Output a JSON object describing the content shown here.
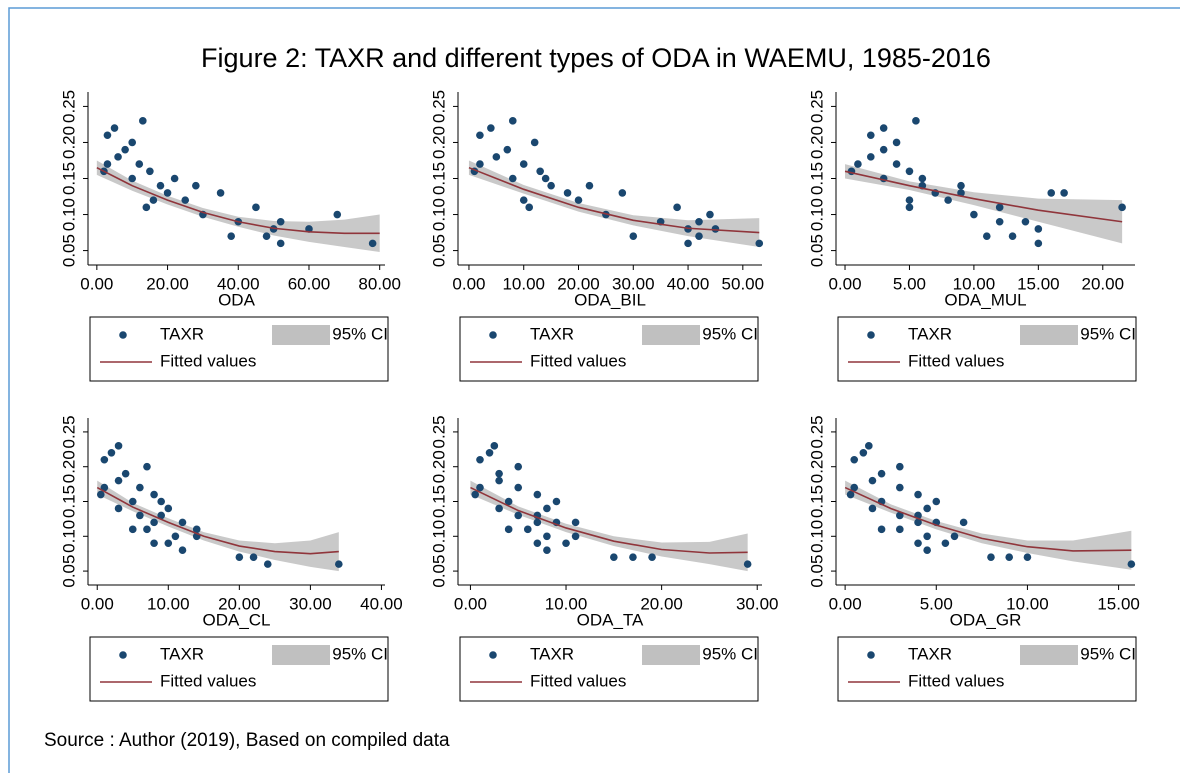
{
  "title": "Figure 2: TAXR and different types of ODA in WAEMU, 1985-2016",
  "source": "Source : Author (2019), Based on compiled data",
  "chart_data": [
    {
      "type": "scatter",
      "x_label": "ODA",
      "xlim": [
        -2.5,
        81.5
      ],
      "ylim": [
        0.03,
        0.27
      ],
      "xticks": [
        {
          "value": 0,
          "label": "0.00"
        },
        {
          "value": 20,
          "label": "20.00"
        },
        {
          "value": 40,
          "label": "40.00"
        },
        {
          "value": 60,
          "label": "60.00"
        },
        {
          "value": 80,
          "label": "80.00"
        }
      ],
      "yticks": [
        {
          "value": 0.05,
          "label": "0.05"
        },
        {
          "value": 0.1,
          "label": "0.10"
        },
        {
          "value": 0.15,
          "label": "0.15"
        },
        {
          "value": 0.2,
          "label": "0.20"
        },
        {
          "value": 0.25,
          "label": "0.25"
        }
      ],
      "series": [
        {
          "name": "TAXR",
          "color": "#1a476f",
          "x": [
            5,
            3,
            10,
            8,
            6,
            12,
            15,
            10,
            18,
            20,
            25,
            14,
            30,
            40,
            50,
            3,
            22,
            35,
            45,
            52,
            2,
            28,
            16,
            38,
            60,
            48,
            52,
            78,
            68,
            13
          ],
          "values": [
            0.22,
            0.21,
            0.2,
            0.19,
            0.18,
            0.17,
            0.16,
            0.15,
            0.14,
            0.13,
            0.12,
            0.11,
            0.1,
            0.09,
            0.08,
            0.17,
            0.15,
            0.13,
            0.11,
            0.09,
            0.16,
            0.14,
            0.12,
            0.07,
            0.08,
            0.07,
            0.06,
            0.06,
            0.1,
            0.23
          ]
        },
        {
          "name": "Fitted values",
          "color": "#90353b",
          "x": [
            0,
            10,
            20,
            30,
            40,
            50,
            60,
            70,
            80
          ],
          "values": [
            0.165,
            0.14,
            0.12,
            0.103,
            0.09,
            0.081,
            0.076,
            0.074,
            0.074
          ]
        },
        {
          "name": "95% CI",
          "color": "#c0c0c0",
          "x": [
            0,
            10,
            20,
            30,
            40,
            50,
            60,
            70,
            80
          ],
          "lower": [
            0.155,
            0.133,
            0.114,
            0.097,
            0.083,
            0.071,
            0.062,
            0.055,
            0.048
          ],
          "upper": [
            0.175,
            0.147,
            0.126,
            0.109,
            0.097,
            0.091,
            0.09,
            0.093,
            0.1
          ]
        }
      ]
    },
    {
      "type": "scatter",
      "x_label": "ODA_BIL",
      "xlim": [
        -2,
        53.5
      ],
      "ylim": [
        0.03,
        0.27
      ],
      "xticks": [
        {
          "value": 0,
          "label": "0.00"
        },
        {
          "value": 10,
          "label": "10.00"
        },
        {
          "value": 20,
          "label": "20.00"
        },
        {
          "value": 30,
          "label": "30.00"
        },
        {
          "value": 40,
          "label": "40.00"
        },
        {
          "value": 50,
          "label": "50.00"
        }
      ],
      "yticks": [
        {
          "value": 0.05,
          "label": "0.05"
        },
        {
          "value": 0.1,
          "label": "0.10"
        },
        {
          "value": 0.15,
          "label": "0.15"
        },
        {
          "value": 0.2,
          "label": "0.20"
        },
        {
          "value": 0.25,
          "label": "0.25"
        }
      ],
      "series": [
        {
          "name": "TAXR",
          "color": "#1a476f",
          "x": [
            4,
            2,
            12,
            7,
            5,
            10,
            13,
            8,
            15,
            18,
            20,
            11,
            25,
            35,
            40,
            2,
            14,
            28,
            38,
            42,
            1,
            22,
            10,
            30,
            45,
            42,
            40,
            53,
            44,
            8
          ],
          "values": [
            0.22,
            0.21,
            0.2,
            0.19,
            0.18,
            0.17,
            0.16,
            0.15,
            0.14,
            0.13,
            0.12,
            0.11,
            0.1,
            0.09,
            0.08,
            0.17,
            0.15,
            0.13,
            0.11,
            0.09,
            0.16,
            0.14,
            0.12,
            0.07,
            0.08,
            0.07,
            0.06,
            0.06,
            0.1,
            0.23
          ]
        },
        {
          "name": "Fitted values",
          "color": "#90353b",
          "x": [
            0,
            10,
            20,
            30,
            40,
            53
          ],
          "values": [
            0.165,
            0.135,
            0.11,
            0.092,
            0.081,
            0.075
          ]
        },
        {
          "name": "95% CI",
          "color": "#c0c0c0",
          "x": [
            0,
            10,
            20,
            30,
            40,
            53
          ],
          "lower": [
            0.155,
            0.129,
            0.104,
            0.085,
            0.07,
            0.055
          ],
          "upper": [
            0.175,
            0.141,
            0.116,
            0.099,
            0.092,
            0.095
          ]
        }
      ]
    },
    {
      "type": "scatter",
      "x_label": "ODA_MUL",
      "xlim": [
        -0.7,
        22.5
      ],
      "ylim": [
        0.03,
        0.27
      ],
      "xticks": [
        {
          "value": 0,
          "label": "0.00"
        },
        {
          "value": 5,
          "label": "5.00"
        },
        {
          "value": 10,
          "label": "10.00"
        },
        {
          "value": 15,
          "label": "15.00"
        },
        {
          "value": 20,
          "label": "20.00"
        }
      ],
      "yticks": [
        {
          "value": 0.05,
          "label": "0.05"
        },
        {
          "value": 0.1,
          "label": "0.10"
        },
        {
          "value": 0.15,
          "label": "0.15"
        },
        {
          "value": 0.2,
          "label": "0.20"
        },
        {
          "value": 0.25,
          "label": "0.25"
        }
      ],
      "series": [
        {
          "name": "TAXR",
          "color": "#1a476f",
          "x": [
            3,
            2,
            4,
            3,
            2,
            4,
            5,
            3,
            6,
            7,
            8,
            5,
            10,
            12,
            15,
            1,
            6,
            9,
            12,
            14,
            0.5,
            9,
            5,
            11,
            16,
            13,
            15,
            21.5,
            17,
            5.5
          ],
          "values": [
            0.22,
            0.21,
            0.2,
            0.19,
            0.18,
            0.17,
            0.16,
            0.15,
            0.14,
            0.13,
            0.12,
            0.11,
            0.1,
            0.09,
            0.08,
            0.17,
            0.15,
            0.13,
            0.11,
            0.09,
            0.16,
            0.14,
            0.12,
            0.07,
            0.13,
            0.07,
            0.06,
            0.11,
            0.13,
            0.23
          ]
        },
        {
          "name": "Fitted values",
          "color": "#90353b",
          "x": [
            0,
            5,
            10,
            15,
            21.5
          ],
          "values": [
            0.16,
            0.14,
            0.122,
            0.106,
            0.09
          ]
        },
        {
          "name": "95% CI",
          "color": "#c0c0c0",
          "x": [
            0,
            5,
            10,
            15,
            21.5
          ],
          "lower": [
            0.15,
            0.134,
            0.113,
            0.09,
            0.06
          ],
          "upper": [
            0.17,
            0.146,
            0.131,
            0.122,
            0.12
          ]
        }
      ]
    },
    {
      "type": "scatter",
      "x_label": "ODA_CL",
      "xlim": [
        -1.3,
        40.5
      ],
      "ylim": [
        0.03,
        0.27
      ],
      "xticks": [
        {
          "value": 0,
          "label": "0.00"
        },
        {
          "value": 10,
          "label": "10.00"
        },
        {
          "value": 20,
          "label": "20.00"
        },
        {
          "value": 30,
          "label": "30.00"
        },
        {
          "value": 40,
          "label": "40.00"
        }
      ],
      "yticks": [
        {
          "value": 0.05,
          "label": "0.05"
        },
        {
          "value": 0.1,
          "label": "0.10"
        },
        {
          "value": 0.15,
          "label": "0.15"
        },
        {
          "value": 0.2,
          "label": "0.20"
        },
        {
          "value": 0.25,
          "label": "0.25"
        }
      ],
      "series": [
        {
          "name": "TAXR",
          "color": "#1a476f",
          "x": [
            2,
            1,
            7,
            4,
            3,
            6,
            8,
            5,
            10,
            9,
            12,
            7,
            14,
            8,
            12,
            1,
            9,
            6,
            5,
            10,
            0.5,
            3,
            8,
            11,
            20,
            22,
            24,
            34,
            14,
            3
          ],
          "values": [
            0.22,
            0.21,
            0.2,
            0.19,
            0.18,
            0.17,
            0.16,
            0.15,
            0.14,
            0.13,
            0.12,
            0.11,
            0.1,
            0.09,
            0.08,
            0.17,
            0.15,
            0.13,
            0.11,
            0.09,
            0.16,
            0.14,
            0.12,
            0.1,
            0.07,
            0.07,
            0.06,
            0.06,
            0.11,
            0.23
          ]
        },
        {
          "name": "Fitted values",
          "color": "#90353b",
          "x": [
            0,
            5,
            10,
            15,
            20,
            25,
            30,
            34
          ],
          "values": [
            0.17,
            0.142,
            0.12,
            0.1,
            0.086,
            0.078,
            0.075,
            0.078
          ]
        },
        {
          "name": "95% CI",
          "color": "#c0c0c0",
          "x": [
            0,
            5,
            10,
            15,
            20,
            25,
            30,
            34
          ],
          "lower": [
            0.16,
            0.136,
            0.114,
            0.094,
            0.078,
            0.066,
            0.056,
            0.05
          ],
          "upper": [
            0.18,
            0.148,
            0.126,
            0.106,
            0.094,
            0.09,
            0.094,
            0.106
          ]
        }
      ]
    },
    {
      "type": "scatter",
      "x_label": "ODA_TA",
      "xlim": [
        -1.3,
        30.5
      ],
      "ylim": [
        0.03,
        0.27
      ],
      "xticks": [
        {
          "value": 0,
          "label": "0.00"
        },
        {
          "value": 10,
          "label": "10.00"
        },
        {
          "value": 20,
          "label": "20.00"
        },
        {
          "value": 30,
          "label": "30.00"
        }
      ],
      "yticks": [
        {
          "value": 0.05,
          "label": "0.05"
        },
        {
          "value": 0.1,
          "label": "0.10"
        },
        {
          "value": 0.15,
          "label": "0.15"
        },
        {
          "value": 0.2,
          "label": "0.20"
        },
        {
          "value": 0.25,
          "label": "0.25"
        }
      ],
      "series": [
        {
          "name": "TAXR",
          "color": "#1a476f",
          "x": [
            2,
            1,
            5,
            3,
            3,
            5,
            7,
            4,
            8,
            7,
            9,
            6,
            11,
            7,
            8,
            1,
            9,
            5,
            4,
            10,
            0.5,
            3,
            7,
            8,
            15,
            17,
            19,
            29,
            11,
            2.5
          ],
          "values": [
            0.22,
            0.21,
            0.2,
            0.19,
            0.18,
            0.17,
            0.16,
            0.15,
            0.14,
            0.13,
            0.12,
            0.11,
            0.1,
            0.09,
            0.08,
            0.17,
            0.15,
            0.13,
            0.11,
            0.09,
            0.16,
            0.14,
            0.12,
            0.1,
            0.07,
            0.07,
            0.07,
            0.06,
            0.12,
            0.23
          ]
        },
        {
          "name": "Fitted values",
          "color": "#90353b",
          "x": [
            0,
            5,
            10,
            15,
            20,
            25,
            29
          ],
          "values": [
            0.17,
            0.137,
            0.112,
            0.093,
            0.081,
            0.076,
            0.077
          ]
        },
        {
          "name": "95% CI",
          "color": "#c0c0c0",
          "x": [
            0,
            5,
            10,
            15,
            20,
            25,
            29
          ],
          "lower": [
            0.16,
            0.131,
            0.106,
            0.086,
            0.071,
            0.06,
            0.05
          ],
          "upper": [
            0.18,
            0.143,
            0.118,
            0.1,
            0.091,
            0.092,
            0.104
          ]
        }
      ]
    },
    {
      "type": "scatter",
      "x_label": "ODA_GR",
      "xlim": [
        -0.5,
        15.9
      ],
      "ylim": [
        0.03,
        0.27
      ],
      "xticks": [
        {
          "value": 0,
          "label": "0.00"
        },
        {
          "value": 5,
          "label": "5.00"
        },
        {
          "value": 10,
          "label": "10.00"
        },
        {
          "value": 15,
          "label": "15.00"
        }
      ],
      "yticks": [
        {
          "value": 0.05,
          "label": "0.05"
        },
        {
          "value": 0.1,
          "label": "0.10"
        },
        {
          "value": 0.15,
          "label": "0.15"
        },
        {
          "value": 0.2,
          "label": "0.20"
        },
        {
          "value": 0.25,
          "label": "0.25"
        }
      ],
      "series": [
        {
          "name": "TAXR",
          "color": "#1a476f",
          "x": [
            1,
            0.5,
            3,
            2,
            1.5,
            3,
            4,
            2,
            4.5,
            4,
            5,
            3,
            6,
            4,
            4.5,
            0.5,
            5,
            3,
            2,
            5.5,
            0.3,
            1.5,
            4,
            4.5,
            8,
            9,
            10,
            15.7,
            6.5,
            1.3
          ],
          "values": [
            0.22,
            0.21,
            0.2,
            0.19,
            0.18,
            0.17,
            0.16,
            0.15,
            0.14,
            0.13,
            0.12,
            0.11,
            0.1,
            0.09,
            0.08,
            0.17,
            0.15,
            0.13,
            0.11,
            0.09,
            0.16,
            0.14,
            0.12,
            0.1,
            0.07,
            0.07,
            0.07,
            0.06,
            0.12,
            0.23
          ]
        },
        {
          "name": "Fitted values",
          "color": "#90353b",
          "x": [
            0,
            2.5,
            5,
            7.5,
            10,
            12.5,
            15.7
          ],
          "values": [
            0.17,
            0.14,
            0.116,
            0.097,
            0.085,
            0.079,
            0.08
          ]
        },
        {
          "name": "95% CI",
          "color": "#c0c0c0",
          "x": [
            0,
            2.5,
            5,
            7.5,
            10,
            12.5,
            15.7
          ],
          "lower": [
            0.16,
            0.134,
            0.11,
            0.09,
            0.076,
            0.064,
            0.052
          ],
          "upper": [
            0.18,
            0.146,
            0.122,
            0.104,
            0.094,
            0.094,
            0.108
          ]
        }
      ]
    }
  ]
}
